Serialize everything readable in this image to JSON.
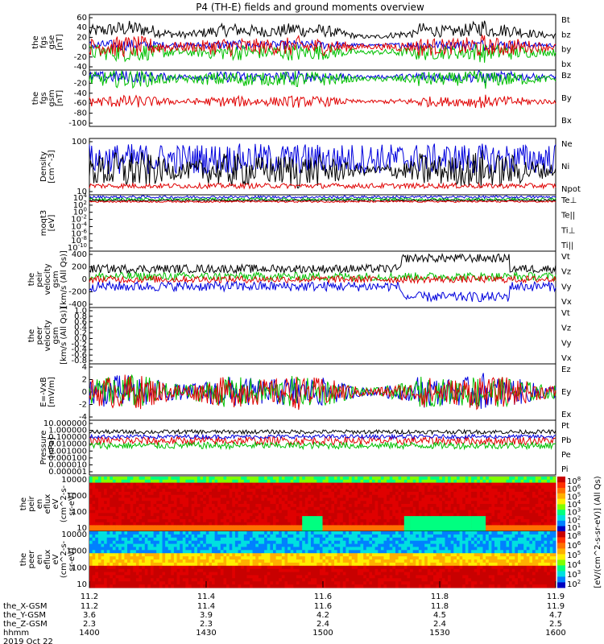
{
  "chart_data": {
    "type": "line",
    "title": "P4 (TH-E) fields and ground moments overview",
    "x_ticks": [
      {
        "x": 11.2,
        "label": "11.2"
      },
      {
        "x": 11.4,
        "label": "11.4"
      },
      {
        "x": 11.6,
        "label": "11.6"
      },
      {
        "x": 11.8,
        "label": "11.8"
      },
      {
        "x": 11.9,
        "label": "11.9"
      }
    ],
    "xlim": [
      11.2,
      11.9
    ],
    "ephemeris": [
      {
        "label": "the_X-GSM",
        "values": [
          "11.2",
          "11.4",
          "11.6",
          "11.8",
          "11.9"
        ]
      },
      {
        "label": "the_Y-GSM",
        "values": [
          "3.6",
          "3.9",
          "4.2",
          "4.5",
          "4.7"
        ]
      },
      {
        "label": "the_Z-GSM",
        "values": [
          "2.3",
          "2.3",
          "2.4",
          "2.4",
          "2.5"
        ]
      },
      {
        "label": "hhmm",
        "values": [
          "1400",
          "1430",
          "1500",
          "1530",
          "1600"
        ]
      }
    ],
    "date": "2019 Oct 22",
    "panels": [
      {
        "id": "fgs",
        "ylabel": [
          "the",
          "fgs",
          "gse",
          "[nT]"
        ],
        "ylim": [
          -40,
          60
        ],
        "ticks": [
          "60",
          "40",
          "20",
          "0",
          "-20",
          "-40"
        ],
        "legend": [
          {
            "text": "Bt",
            "color": "#000000"
          },
          {
            "text": "bz",
            "color": "#e00000"
          },
          {
            "text": "by",
            "color": "#00c000"
          },
          {
            "text": "bx",
            "color": "#0000dd"
          }
        ]
      },
      {
        "id": "fgs_gsm",
        "ylabel": [
          "the",
          "fgs",
          "gsm",
          "[nT]"
        ],
        "ylim": [
          -110,
          15
        ],
        "ticks": [
          "0",
          "-20",
          "-40",
          "-60",
          "-80",
          "-100"
        ],
        "legend": [
          {
            "text": "Bz",
            "color": "#e00000"
          },
          {
            "text": "By",
            "color": "#00c000"
          },
          {
            "text": "Bx",
            "color": "#0000dd"
          }
        ]
      },
      {
        "id": "density",
        "ylabel": [
          "Density",
          "[cm^-3]"
        ],
        "log": true,
        "ticks": [
          "100",
          "10"
        ],
        "legend": [
          {
            "text": "Ne",
            "color": "#e00000"
          },
          {
            "text": "Ni",
            "color": "#000000"
          },
          {
            "text": "Npot",
            "color": "#0000dd"
          }
        ]
      },
      {
        "id": "temp",
        "ylabel": [
          "moqt3",
          "[eV]"
        ],
        "log": true,
        "ticks": [
          "10^4",
          "10^2",
          "10^0",
          "10^-2",
          "10^-4",
          "10^-6",
          "10^-8",
          "10^-10"
        ],
        "legend": [
          {
            "text": "Te⊥",
            "color": "#e00000"
          },
          {
            "text": "Te||",
            "color": "#000000"
          },
          {
            "text": "Ti⊥",
            "color": "#0000dd"
          },
          {
            "text": "Ti||",
            "color": "#00c000"
          }
        ]
      },
      {
        "id": "peir_v",
        "ylabel": [
          "the",
          "peir",
          "velocity",
          "gsm",
          "[km/s (All Qs)]"
        ],
        "ylim": [
          -400,
          400
        ],
        "ticks": [
          "400",
          "200",
          "0",
          "-200",
          "-400"
        ],
        "legend": [
          {
            "text": "Vt",
            "color": "#000000"
          },
          {
            "text": "Vz",
            "color": "#e00000"
          },
          {
            "text": "Vy",
            "color": "#00c000"
          },
          {
            "text": "Vx",
            "color": "#0000dd"
          }
        ]
      },
      {
        "id": "peer_v",
        "ylabel": [
          "the",
          "peer",
          "velocity",
          "gsm",
          "[km/s (All Qs)]"
        ],
        "ylim": [
          -0.8,
          1.0
        ],
        "ticks": [
          "1.0",
          "0.8",
          "0.6",
          "0.4",
          "0.2",
          "0.0",
          "-0.2",
          "-0.4",
          "-0.6",
          "-0.8"
        ],
        "legend": [
          {
            "text": "Vt",
            "color": "#000000"
          },
          {
            "text": "Vz",
            "color": "#e00000"
          },
          {
            "text": "Vy",
            "color": "#00c000"
          },
          {
            "text": "Vx",
            "color": "#0000dd"
          }
        ]
      },
      {
        "id": "efield",
        "ylabel": [
          "E=-VxB",
          "[mV/m]"
        ],
        "ylim": [
          -4,
          4
        ],
        "ticks": [
          "4",
          "2",
          "0",
          "-2",
          "-4"
        ],
        "legend": [
          {
            "text": "Ez",
            "color": "#e00000"
          },
          {
            "text": "Ey",
            "color": "#00c000"
          },
          {
            "text": "Ex",
            "color": "#0000dd"
          }
        ]
      },
      {
        "id": "pressure",
        "ylabel": [
          "Pressure",
          "[nPa]"
        ],
        "log": true,
        "ticks": [
          "10.000000",
          "1.000000",
          "0.100000",
          "0.010000",
          "0.001000",
          "0.000100",
          "0.000010",
          "0.000001"
        ],
        "legend": [
          {
            "text": "Pt",
            "color": "#000000"
          },
          {
            "text": "Pb",
            "color": "#e00000"
          },
          {
            "text": "Pe",
            "color": "#00c000"
          },
          {
            "text": "Pi",
            "color": "#0000dd"
          }
        ]
      },
      {
        "id": "peir_spec",
        "type": "heatmap",
        "ylabel": [
          "the",
          "peir",
          "en",
          "eflux",
          "eV",
          "(cm^2-s-",
          "sr-eV)"
        ],
        "ticks": [
          "10000",
          "1000",
          "100",
          "10"
        ],
        "colorbar_ticks": [
          "10^8",
          "10^6",
          "10^5",
          "10^4",
          "10^3",
          "10^2",
          "10^1"
        ],
        "colorbar_label": "[eV/(cm^2-s-sr-eV)] (All Qs)"
      },
      {
        "id": "peer_spec",
        "type": "heatmap",
        "ylabel": [
          "the",
          "peer",
          "en",
          "eflux",
          "eV",
          "(cm^2-s-",
          "sr-eV)"
        ],
        "ticks": [
          "10000",
          "1000",
          "100",
          "10"
        ],
        "colorbar_ticks": [
          "10^8",
          "10^6",
          "10^5",
          "10^4",
          "10^3",
          "10^2"
        ],
        "colorbar_label": "[eV/(cm^2-s-sr-eV)]"
      }
    ]
  }
}
